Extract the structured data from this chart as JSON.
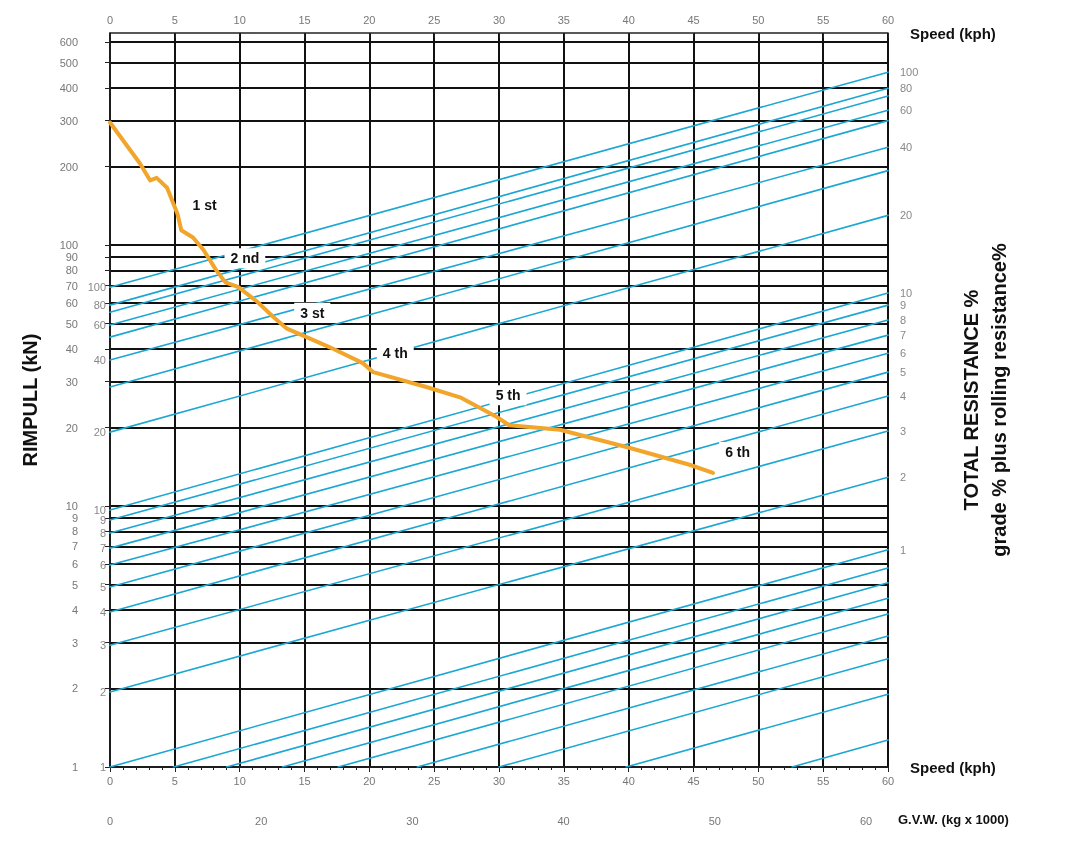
{
  "chart_data": {
    "type": "line",
    "ylabel": "RIMPULL (kN)",
    "y2label": "TOTAL RESISTANCE %\ngrade % plus rolling resistance%",
    "xlabel": "Speed (kph)",
    "x2label": "Speed (kph)",
    "log": "y",
    "grid": true,
    "marker": "none",
    "line_style": "solid",
    "xlim": [
      0,
      60
    ],
    "xticks": [
      0,
      5,
      10,
      15,
      20,
      25,
      30,
      35,
      40,
      45,
      50,
      55,
      60
    ],
    "x2lim": [
      0,
      60
    ],
    "x2ticks": [
      0,
      5,
      10,
      15,
      20,
      25,
      30,
      35,
      40,
      45,
      50,
      55,
      60
    ],
    "ylim": [
      1,
      650
    ],
    "yticks": [
      1,
      2,
      3,
      4,
      5,
      6,
      7,
      8,
      9,
      10,
      20,
      30,
      40,
      50,
      60,
      70,
      80,
      90,
      100,
      200,
      300,
      400,
      500,
      600
    ],
    "series": [
      {
        "color": "#f2a52b",
        "x": [
          0,
          2.3,
          3.1,
          3.6,
          4.4,
          5.2,
          5.5,
          6.4,
          7.2,
          8.2,
          8.9,
          9.9,
          11.3,
          12.6,
          13.6,
          14.9,
          17,
          19.5,
          20.3,
          24.4,
          27,
          29.8,
          30.8,
          34.7,
          39.9,
          44.7,
          46.5
        ],
        "values": [
          295,
          206,
          177,
          181,
          166,
          132,
          114,
          107,
          96,
          80,
          72,
          69,
          61,
          53,
          48,
          45,
          40.5,
          35.3,
          32.6,
          28.6,
          26.1,
          22,
          20.4,
          19.6,
          16.8,
          14.4,
          13.4
        ]
      },
      {
        "name": "100",
        "color": "#1ba7d4",
        "x": [
          0,
          60
        ],
        "values": [
          69,
          460
        ]
      },
      {
        "name": "80",
        "color": "#1ba7d4",
        "x": [
          0,
          60
        ],
        "values": [
          58.9,
          399
        ]
      },
      {
        "name": "60",
        "color": "#1ba7d4",
        "x": [
          0,
          60
        ],
        "values": [
          49.4,
          329
        ]
      },
      {
        "name": "40",
        "color": "#1ba7d4",
        "x": [
          0,
          60
        ],
        "values": [
          36.3,
          237
        ]
      },
      {
        "name": "20",
        "color": "#1ba7d4",
        "x": [
          0,
          60
        ],
        "values": [
          19.2,
          130
        ]
      },
      {
        "name": "10",
        "color": "#1ba7d4",
        "x": [
          0,
          60
        ],
        "values": [
          9.66,
          65.5
        ]
      },
      {
        "name": "9",
        "color": "#1ba7d4",
        "x": [
          0,
          60
        ],
        "values": [
          8.84,
          58.9
        ]
      },
      {
        "name": "8",
        "color": "#1ba7d4",
        "x": [
          0,
          60
        ],
        "values": [
          7.88,
          51.6
        ]
      },
      {
        "name": "7",
        "color": "#1ba7d4",
        "x": [
          0,
          60
        ],
        "values": [
          6.9,
          45.2
        ]
      },
      {
        "name": "6",
        "color": "#1ba7d4",
        "x": [
          0,
          60
        ],
        "values": [
          5.94,
          38.5
        ]
      },
      {
        "name": "5",
        "color": "#1ba7d4",
        "x": [
          0,
          60
        ],
        "values": [
          4.9,
          32.6
        ]
      },
      {
        "name": "4",
        "color": "#1ba7d4",
        "x": [
          0,
          60
        ],
        "values": [
          3.93,
          26.4
        ]
      },
      {
        "name": "3",
        "color": "#1ba7d4",
        "x": [
          0,
          60
        ],
        "values": [
          2.93,
          19.4
        ]
      },
      {
        "name": "2",
        "color": "#1ba7d4",
        "x": [
          0,
          60
        ],
        "values": [
          1.94,
          12.9
        ]
      },
      {
        "name": "1",
        "color": "#1ba7d4",
        "x": [
          0,
          60
        ],
        "values": [
          1,
          6.8
        ]
      },
      {
        "color": "#1ba7d4",
        "x": [
          0,
          60
        ],
        "values": [
          55.3,
          373
        ]
      },
      {
        "color": "#1ba7d4",
        "x": [
          0,
          60
        ],
        "values": [
          44.4,
          300
        ]
      },
      {
        "color": "#1ba7d4",
        "x": [
          0,
          60
        ],
        "values": [
          28.6,
          193
        ]
      },
      {
        "color": "#1ba7d4",
        "x": [
          4.9,
          60
        ],
        "values": [
          1,
          5.79
        ]
      },
      {
        "color": "#1ba7d4",
        "x": [
          9,
          60
        ],
        "values": [
          1,
          5.08
        ]
      },
      {
        "color": "#1ba7d4",
        "x": [
          13.3,
          60
        ],
        "values": [
          1,
          4.43
        ]
      },
      {
        "color": "#1ba7d4",
        "x": [
          17.6,
          60
        ],
        "values": [
          1,
          3.86
        ]
      },
      {
        "color": "#1ba7d4",
        "x": [
          23.7,
          60
        ],
        "values": [
          1,
          3.18
        ]
      },
      {
        "color": "#1ba7d4",
        "x": [
          30,
          60
        ],
        "values": [
          1,
          2.6
        ]
      },
      {
        "color": "#1ba7d4",
        "x": [
          39.8,
          60
        ],
        "values": [
          1,
          1.9
        ]
      },
      {
        "color": "#1ba7d4",
        "x": [
          52.6,
          60
        ],
        "values": [
          1,
          1.27
        ]
      }
    ],
    "annotations": [
      {
        "text": "1 st",
        "x": 7.3,
        "y": 142
      },
      {
        "text": "2 nd",
        "x": 10.4,
        "y": 89
      },
      {
        "text": "3 st",
        "x": 15.6,
        "y": 55
      },
      {
        "text": "4 th",
        "x": 22,
        "y": 38.6
      },
      {
        "text": "5 th",
        "x": 30.7,
        "y": 26.6
      },
      {
        "text": "6 th",
        "x": 48.4,
        "y": 16.1
      },
      "0",
      "20",
      "30",
      "40",
      "50",
      "60",
      "G.V.W. (kg x 1000)"
    ]
  }
}
